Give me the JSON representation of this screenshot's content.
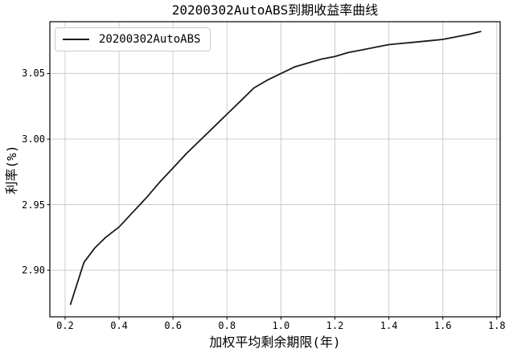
{
  "figure": {
    "title": "20200302AutoABS到期收益率曲线",
    "background": "#ffffff"
  },
  "legend": {
    "label": "20200302AutoABS",
    "position": "upper left"
  },
  "chart_data": {
    "type": "line",
    "title": "20200302AutoABS到期收益率曲线",
    "xlabel": "加权平均剩余期限(年)",
    "ylabel": "利率(%)",
    "grid": true,
    "grid_color": "#cccccc",
    "spine_color": "#000000",
    "legend_position": "upper left",
    "xlim": [
      0.1435,
      1.8125
    ],
    "ylim": [
      2.8645,
      3.0895
    ],
    "xticks": [
      0.2,
      0.4,
      0.6,
      0.8,
      1.0,
      1.2,
      1.4,
      1.6,
      1.8
    ],
    "xtick_labels": [
      "0.2",
      "0.4",
      "0.6",
      "0.8",
      "1.0",
      "1.2",
      "1.4",
      "1.6",
      "1.8"
    ],
    "yticks": [
      2.9,
      2.95,
      3.0,
      3.05
    ],
    "ytick_labels": [
      "2.90",
      "2.95",
      "3.00",
      "3.05"
    ],
    "series": [
      {
        "name": "20200302AutoABS",
        "color": "#1a1a1a",
        "x": [
          0.22,
          0.27,
          0.31,
          0.35,
          0.4,
          0.45,
          0.5,
          0.55,
          0.6,
          0.65,
          0.7,
          0.75,
          0.8,
          0.85,
          0.9,
          0.95,
          1.0,
          1.05,
          1.1,
          1.15,
          1.2,
          1.25,
          1.3,
          1.35,
          1.4,
          1.45,
          1.5,
          1.55,
          1.6,
          1.65,
          1.7,
          1.74
        ],
        "y": [
          2.874,
          2.906,
          2.917,
          2.925,
          2.933,
          2.944,
          2.955,
          2.967,
          2.978,
          2.989,
          2.999,
          3.009,
          3.019,
          3.029,
          3.039,
          3.045,
          3.05,
          3.055,
          3.058,
          3.061,
          3.063,
          3.066,
          3.068,
          3.07,
          3.072,
          3.073,
          3.074,
          3.075,
          3.076,
          3.078,
          3.08,
          3.082
        ]
      }
    ]
  }
}
